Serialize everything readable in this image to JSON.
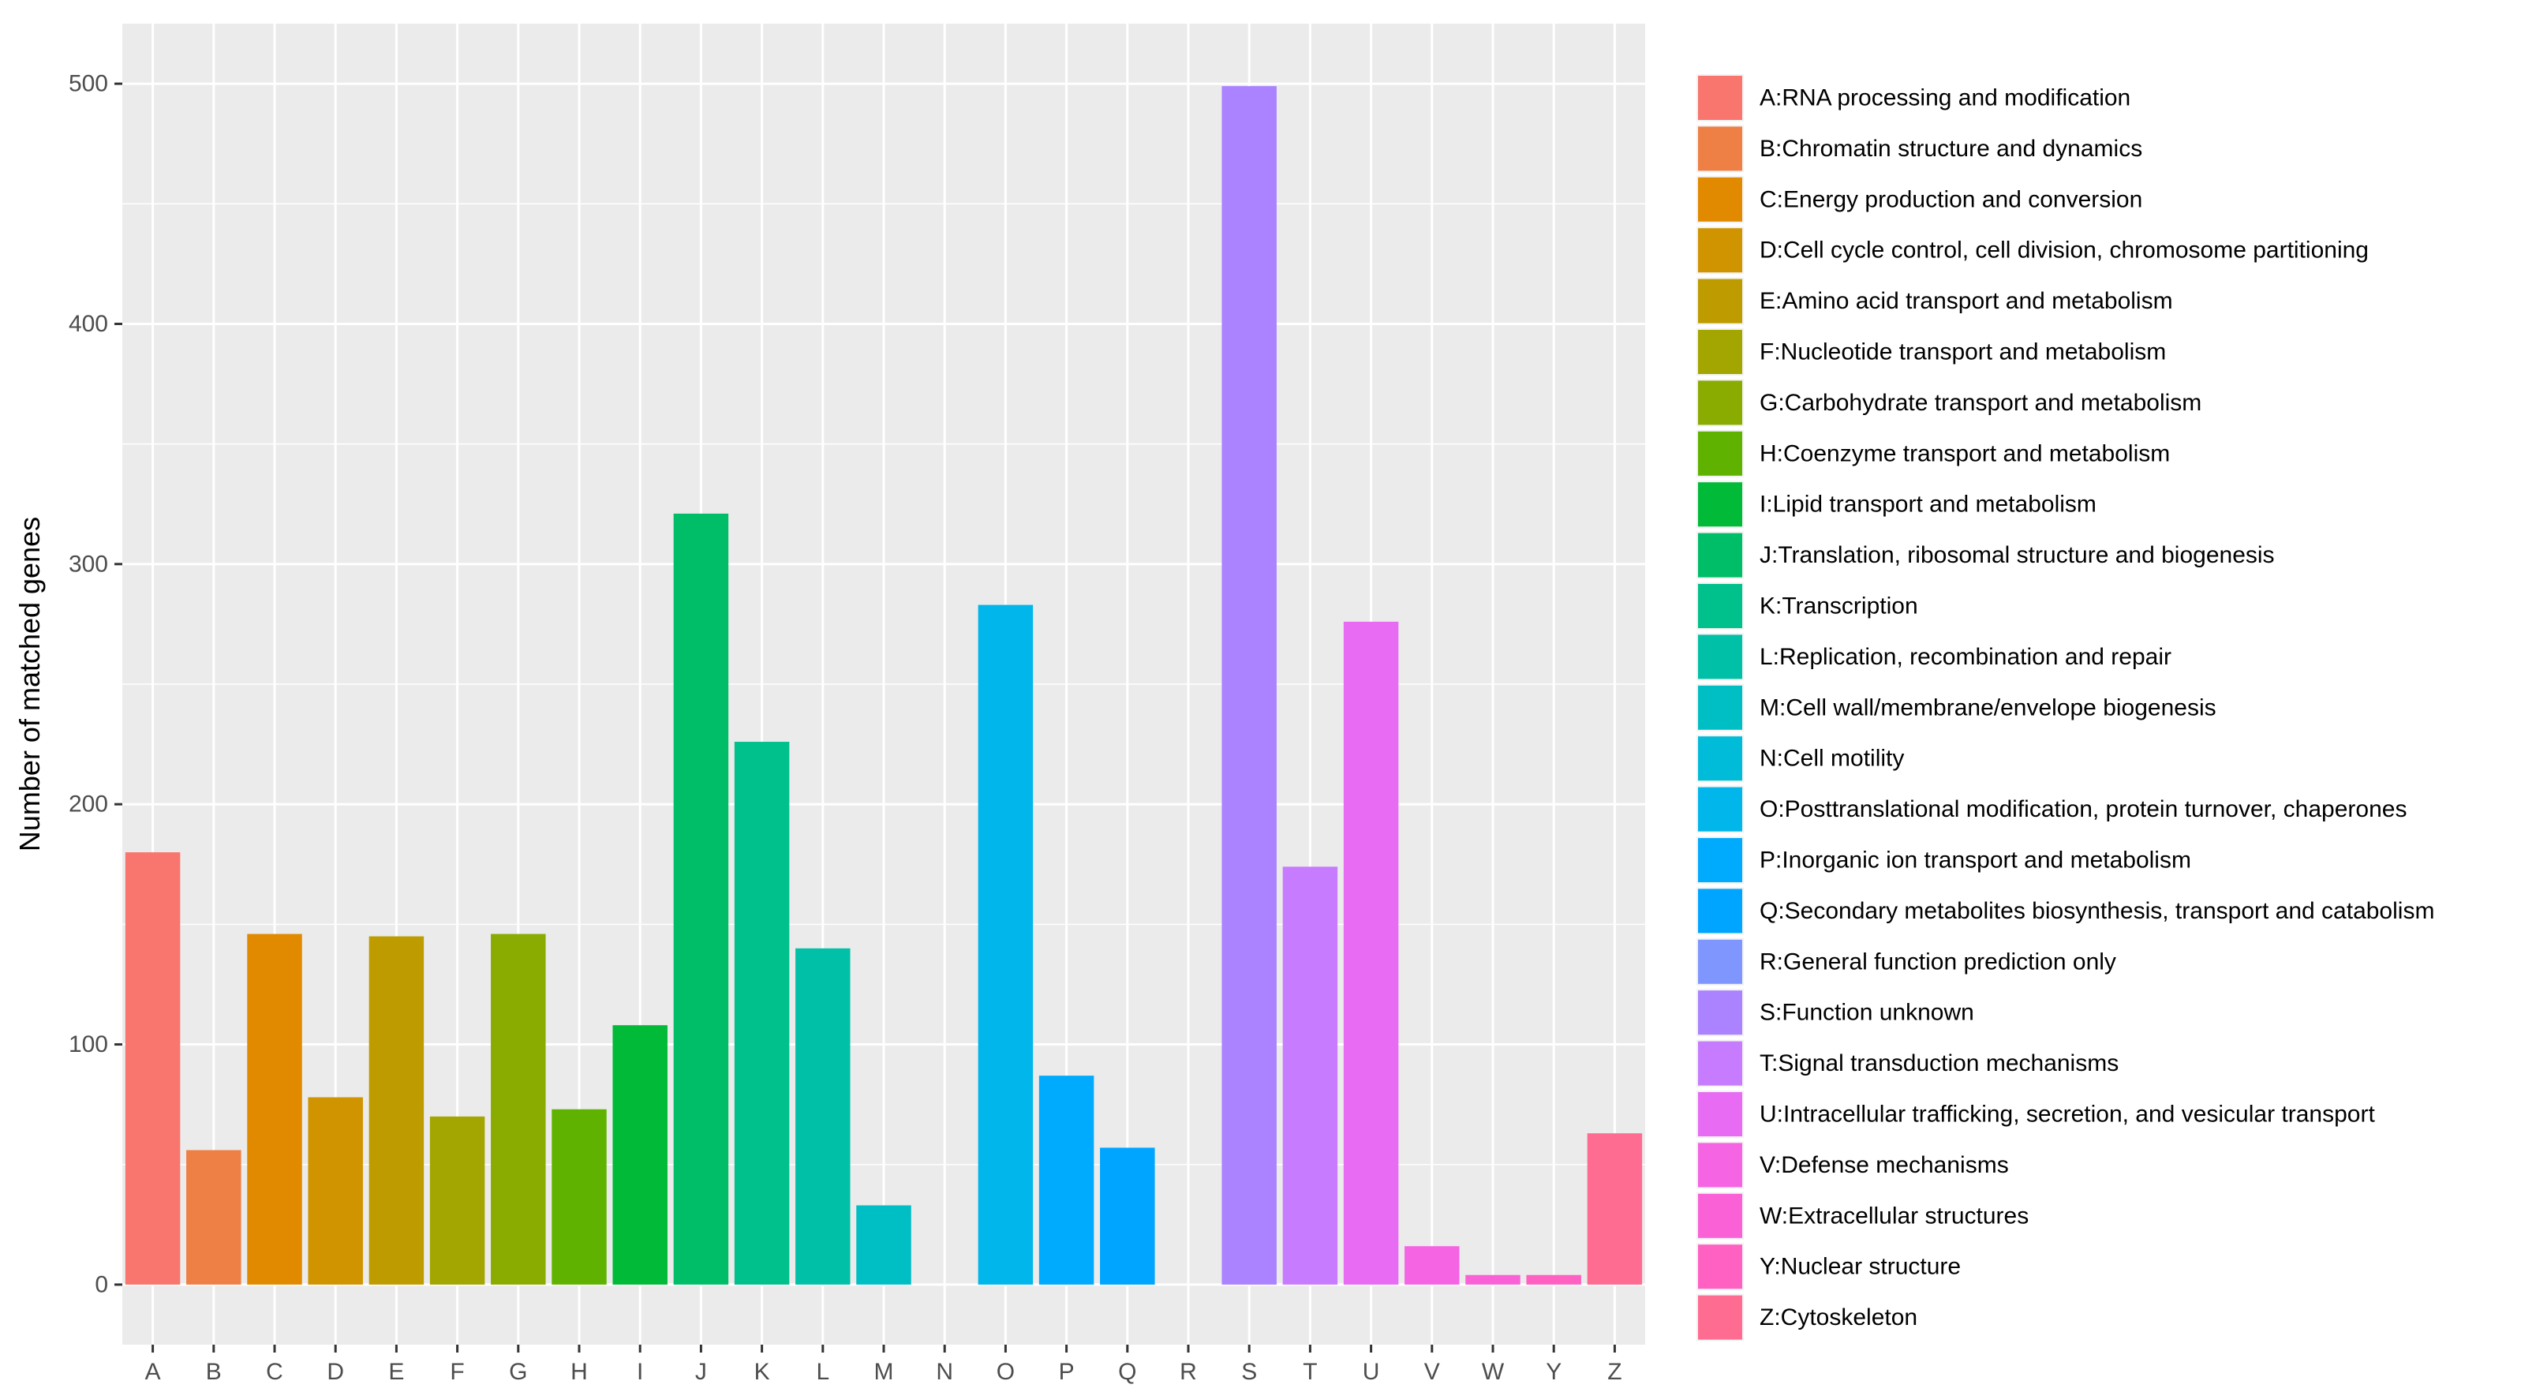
{
  "chart_data": {
    "type": "bar",
    "title": "",
    "xlabel": "",
    "ylabel": "Number of matched genes",
    "ylim": [
      -25,
      525
    ],
    "yticks": [
      0,
      100,
      200,
      300,
      400,
      500
    ],
    "grid": true,
    "legend_position": "right",
    "categories": [
      "A",
      "B",
      "C",
      "D",
      "E",
      "F",
      "G",
      "H",
      "I",
      "J",
      "K",
      "L",
      "M",
      "N",
      "O",
      "P",
      "Q",
      "R",
      "S",
      "T",
      "U",
      "V",
      "W",
      "Y",
      "Z"
    ],
    "values": [
      180,
      56,
      146,
      78,
      145,
      70,
      146,
      73,
      108,
      321,
      226,
      140,
      33,
      0,
      283,
      87,
      57,
      0,
      499,
      174,
      276,
      16,
      4,
      4,
      63
    ],
    "colors": [
      "#F8766D",
      "#EE8045",
      "#E18A00",
      "#D09400",
      "#BE9C00",
      "#A3A500",
      "#8AAB00",
      "#5FB300",
      "#00BA38",
      "#00BE67",
      "#00C08B",
      "#00C1A8",
      "#00BFC4",
      "#00BCD8",
      "#00B6EB",
      "#00ABFD",
      "#00A5FF",
      "#7F96FF",
      "#AB82FF",
      "#C77CFF",
      "#E76BF3",
      "#F564E3",
      "#FB61D7",
      "#FF61C3",
      "#FF6C91"
    ],
    "legend": [
      "A:RNA processing and modification",
      "B:Chromatin structure and dynamics",
      "C:Energy production and conversion",
      "D:Cell cycle control, cell division, chromosome partitioning",
      "E:Amino acid transport and metabolism",
      "F:Nucleotide transport and metabolism",
      "G:Carbohydrate transport and metabolism",
      "H:Coenzyme transport and metabolism",
      "I:Lipid transport and metabolism",
      "J:Translation, ribosomal structure and biogenesis",
      "K:Transcription",
      "L:Replication, recombination and repair",
      "M:Cell wall/membrane/envelope biogenesis",
      "N:Cell motility",
      "O:Posttranslational modification, protein turnover, chaperones",
      "P:Inorganic ion transport and metabolism",
      "Q:Secondary metabolites biosynthesis, transport and catabolism",
      "R:General function prediction only",
      "S:Function unknown",
      "T:Signal transduction mechanisms",
      "U:Intracellular trafficking, secretion, and vesicular transport",
      "V:Defense mechanisms",
      "W:Extracellular structures",
      "Y:Nuclear structure",
      "Z:Cytoskeleton"
    ]
  },
  "theme": {
    "panel_background": "#EBEBEB",
    "grid_color": "#FFFFFF",
    "text_color": "#4D4D4D",
    "label_color": "#000000"
  }
}
